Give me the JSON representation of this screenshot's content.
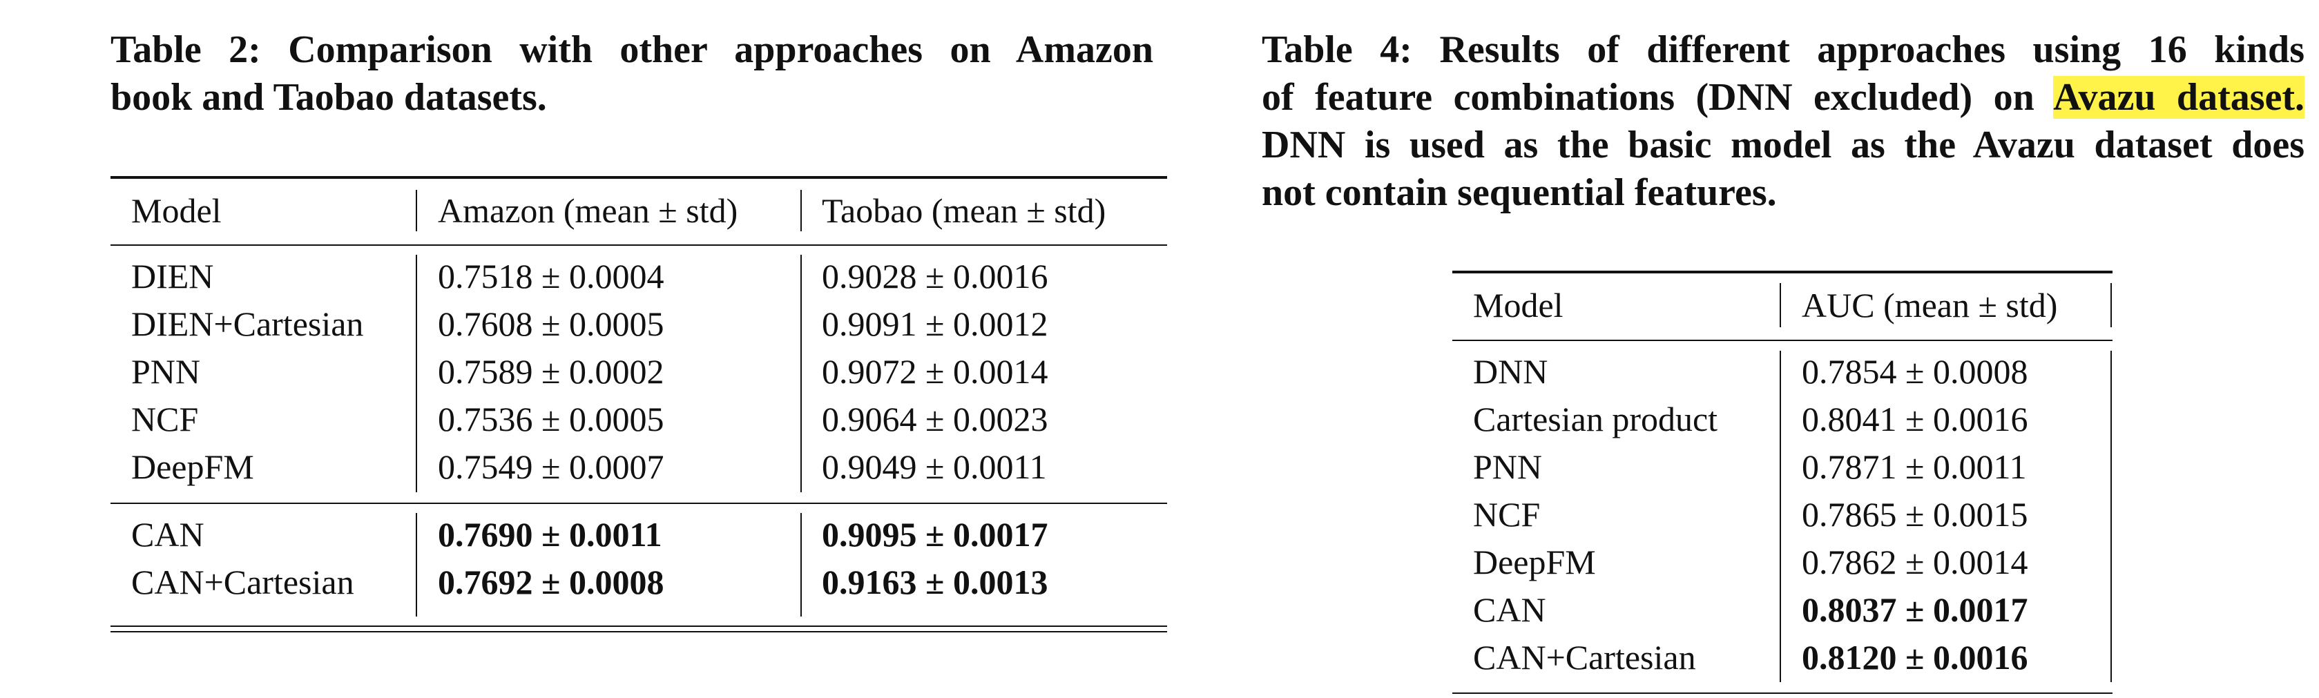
{
  "table2": {
    "caption_lines": [
      "Table 2: Comparison with other approaches on Amazon",
      "book and Taobao datasets."
    ],
    "headers": [
      "Model",
      "Amazon (mean ± std)",
      "Taobao (mean ± std)"
    ],
    "rows": [
      {
        "model": "DIEN",
        "amazon": "0.7518 ± 0.0004",
        "taobao": "0.9028 ± 0.0016",
        "bold": false
      },
      {
        "model": "DIEN+Cartesian",
        "amazon": "0.7608 ± 0.0005",
        "taobao": "0.9091 ± 0.0012",
        "bold": false
      },
      {
        "model": "PNN",
        "amazon": "0.7589 ± 0.0002",
        "taobao": "0.9072 ± 0.0014",
        "bold": false
      },
      {
        "model": "NCF",
        "amazon": "0.7536 ± 0.0005",
        "taobao": "0.9064 ± 0.0023",
        "bold": false
      },
      {
        "model": "DeepFM",
        "amazon": "0.7549 ± 0.0007",
        "taobao": "0.9049 ± 0.0011",
        "bold": false
      },
      {
        "model": "CAN",
        "amazon": "0.7690 ± 0.0011",
        "taobao": "0.9095 ± 0.0017",
        "bold": true
      },
      {
        "model": "CAN+Cartesian",
        "amazon": "0.7692 ± 0.0008",
        "taobao": "0.9163 ± 0.0013",
        "bold": true
      }
    ]
  },
  "table4": {
    "caption_lines": [
      "Table 4: Results of different approaches using 16 kinds",
      "of feature combinations (DNN excluded) on ",
      "Avazu dataset.",
      "DNN is used as the basic model as the Avazu dataset does",
      "not contain sequential features."
    ],
    "highlight_color": "#fff34a",
    "headers": [
      "Model",
      "AUC (mean ± std)"
    ],
    "rows": [
      {
        "model": "DNN",
        "auc": "0.7854 ± 0.0008",
        "bold": false
      },
      {
        "model": "Cartesian product",
        "auc": "0.8041 ± 0.0016",
        "bold": false
      },
      {
        "model": "PNN",
        "auc": "0.7871 ± 0.0011",
        "bold": false
      },
      {
        "model": "NCF",
        "auc": "0.7865 ± 0.0015",
        "bold": false
      },
      {
        "model": "DeepFM",
        "auc": "0.7862 ± 0.0014",
        "bold": false
      },
      {
        "model": "CAN",
        "auc": "0.8037 ± 0.0017",
        "bold": true
      },
      {
        "model": "CAN+Cartesian",
        "auc": "0.8120 ± 0.0016",
        "bold": true
      }
    ]
  }
}
